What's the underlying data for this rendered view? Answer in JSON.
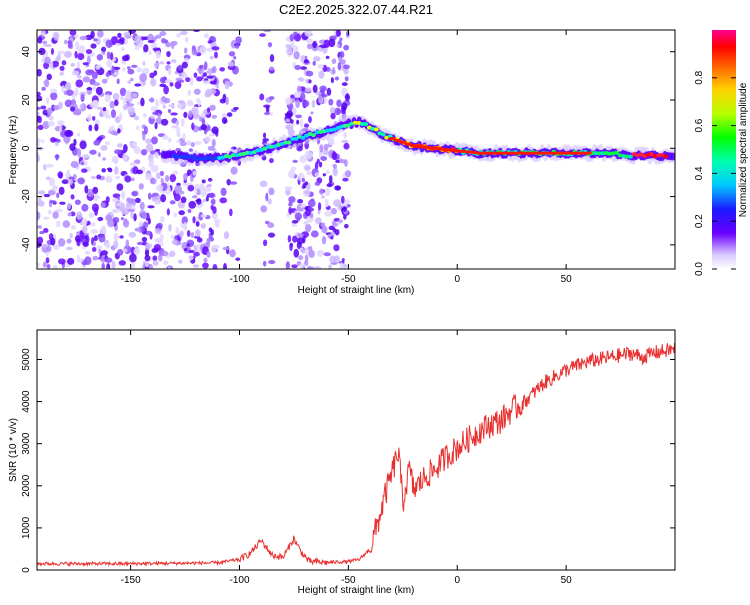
{
  "title": "C2E2.2025.322.07.44.R21",
  "chart_data": [
    {
      "type": "heatmap",
      "name": "spectrogram",
      "xlabel": "Height of straight line (km)",
      "ylabel": "Frequency (Hz)",
      "xlim": [
        -193,
        100
      ],
      "ylim": [
        -50,
        49
      ],
      "xticks": [
        -150,
        -100,
        -50,
        0,
        50
      ],
      "yticks": [
        -40,
        -20,
        0,
        20,
        40
      ],
      "ridge": {
        "x": [
          -130,
          -120,
          -110,
          -100,
          -90,
          -80,
          -70,
          -60,
          -50,
          -45,
          -40,
          -35,
          -30,
          -20,
          -10,
          0,
          10,
          20,
          30,
          40,
          50,
          60,
          70,
          80,
          90,
          97
        ],
        "y": [
          -3,
          -4,
          -4,
          -3,
          -1,
          2,
          5,
          7,
          10,
          11,
          9,
          6,
          4,
          1,
          0,
          -1,
          -2,
          -2,
          -2,
          -2,
          -2,
          -2,
          -2,
          -3,
          -3,
          -3
        ]
      },
      "colorbar": {
        "label": "Normalized spectral amplitude",
        "min": 0.0,
        "max": 1.0,
        "ticks": [
          0.0,
          0.2,
          0.4,
          0.6,
          0.8
        ]
      }
    },
    {
      "type": "line",
      "name": "snr",
      "xlabel": "Height of straight line (km)",
      "ylabel": "SNR (10 * v/v)",
      "xlim": [
        -193,
        100
      ],
      "ylim": [
        0,
        5700
      ],
      "xticks": [
        -150,
        -100,
        -50,
        0,
        50
      ],
      "yticks": [
        0,
        1000,
        2000,
        3000,
        4000,
        5000
      ],
      "color": "#e8302f",
      "series": [
        {
          "name": "SNR",
          "x": [
            -193,
            -170,
            -150,
            -130,
            -110,
            -100,
            -95,
            -90,
            -85,
            -80,
            -75,
            -72,
            -68,
            -60,
            -50,
            -45,
            -40,
            -36,
            -33,
            -30,
            -27,
            -25,
            -22,
            -20,
            -15,
            -10,
            -5,
            0,
            5,
            10,
            15,
            20,
            25,
            30,
            35,
            40,
            45,
            50,
            55,
            60,
            65,
            70,
            75,
            80,
            85,
            90,
            95,
            100
          ],
          "y": [
            150,
            150,
            150,
            160,
            170,
            250,
            400,
            700,
            350,
            300,
            750,
            450,
            200,
            180,
            200,
            250,
            500,
            1200,
            1800,
            2300,
            2800,
            1600,
            2400,
            1900,
            2200,
            2400,
            2700,
            2900,
            3100,
            3300,
            3450,
            3550,
            3800,
            3950,
            4200,
            4450,
            4600,
            4750,
            4850,
            4950,
            5000,
            5050,
            5100,
            5150,
            5050,
            5150,
            5200,
            5250
          ]
        }
      ]
    }
  ]
}
